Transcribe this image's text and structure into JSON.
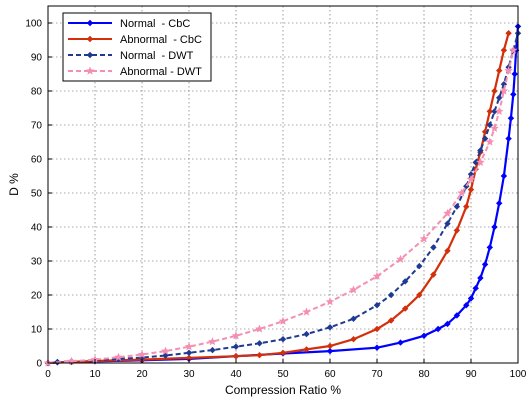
{
  "chart_data": {
    "type": "line",
    "title": "",
    "xlabel": "Compression Ratio %",
    "ylabel": "D %",
    "xlim": [
      0,
      100
    ],
    "ylim": [
      0,
      105
    ],
    "xticks": [
      0,
      10,
      20,
      30,
      40,
      50,
      60,
      70,
      80,
      90,
      100
    ],
    "yticks": [
      0,
      10,
      20,
      30,
      40,
      50,
      60,
      70,
      80,
      90,
      100
    ],
    "grid": true,
    "legend": "top-left",
    "series": [
      {
        "name": "Normal  - CbC",
        "color": "#0000ff",
        "line": "solid",
        "marker": "diamond",
        "x": [
          0,
          2,
          5,
          10,
          20,
          30,
          40,
          50,
          60,
          70,
          75,
          80,
          83,
          85,
          87,
          89,
          90,
          91,
          92,
          93,
          94,
          95,
          96,
          97,
          98,
          98.5,
          99,
          99.3,
          99.6,
          100
        ],
        "y": [
          0,
          0.2,
          0.3,
          0.5,
          0.8,
          1.2,
          2,
          2.8,
          3.5,
          4.5,
          6,
          8,
          10,
          11.5,
          14,
          17,
          19,
          22,
          25,
          29,
          34,
          40,
          47,
          55,
          66,
          72,
          79,
          85,
          92,
          99
        ]
      },
      {
        "name": "Abnormal  - CbC",
        "color": "#d32f0b",
        "line": "solid",
        "marker": "diamond",
        "x": [
          0,
          5,
          10,
          20,
          30,
          40,
          45,
          50,
          55,
          60,
          65,
          70,
          73,
          76,
          79,
          82,
          85,
          87,
          89,
          90,
          91,
          92,
          93,
          94,
          95,
          96,
          97,
          98
        ],
        "y": [
          0,
          0.3,
          0.6,
          1,
          1.5,
          2,
          2.3,
          3,
          4,
          5,
          7,
          10,
          12.5,
          16,
          20,
          26,
          33,
          39,
          46,
          51,
          57,
          62,
          68,
          74,
          80,
          86,
          92,
          97
        ]
      },
      {
        "name": "Normal  - DWT",
        "color": "#1f3a93",
        "line": "dashed",
        "marker": "diamond",
        "x": [
          0,
          2,
          5,
          10,
          15,
          20,
          25,
          30,
          35,
          40,
          45,
          50,
          55,
          60,
          65,
          70,
          73,
          76,
          79,
          82,
          85,
          87,
          89,
          90,
          91,
          92,
          93,
          94,
          95,
          96,
          97,
          98,
          99,
          100
        ],
        "y": [
          0,
          0.3,
          0.5,
          0.8,
          1.2,
          1.6,
          2.2,
          3,
          3.8,
          4.8,
          5.8,
          7,
          8.5,
          10.5,
          13,
          17,
          20,
          24,
          28.5,
          34,
          41,
          46,
          52,
          55.5,
          59,
          62.5,
          66,
          70,
          74,
          78,
          82,
          87,
          92,
          97
        ]
      },
      {
        "name": "Abnormal - DWT",
        "color": "#f48fb1",
        "line": "dashed",
        "marker": "star",
        "x": [
          0,
          5,
          10,
          15,
          20,
          25,
          30,
          35,
          40,
          45,
          50,
          55,
          60,
          65,
          70,
          75,
          80,
          85,
          88,
          90,
          92,
          94,
          95,
          96,
          97,
          98,
          99
        ],
        "y": [
          0,
          0.5,
          1,
          1.7,
          2.5,
          3.5,
          4.8,
          6.3,
          8,
          10,
          12.3,
          15,
          18,
          21.5,
          25.5,
          30.5,
          36.5,
          44,
          50,
          54,
          59,
          65,
          69,
          74,
          80,
          86,
          92
        ]
      }
    ]
  }
}
